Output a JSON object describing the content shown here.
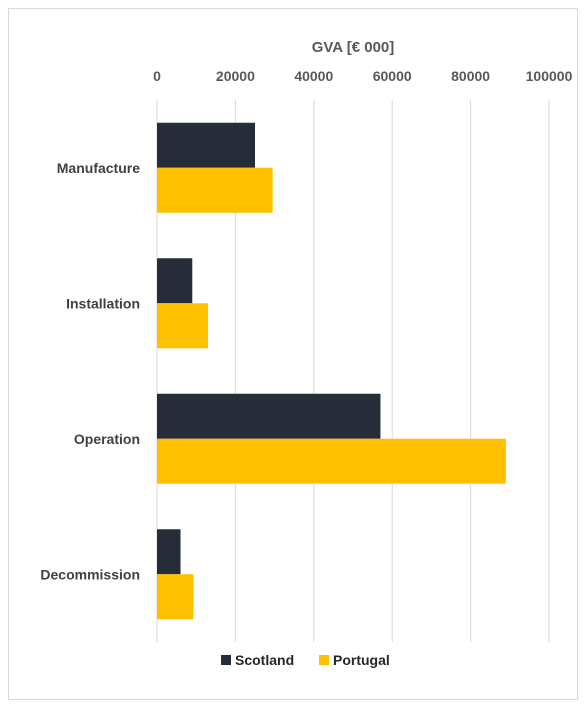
{
  "chart_data": {
    "type": "bar",
    "orientation": "horizontal",
    "title": "",
    "xlabel": "GVA [€ 000]",
    "ylabel": "",
    "categories": [
      "Manufacture",
      "Installation",
      "Operation",
      "Decommission"
    ],
    "series": [
      {
        "name": "Scotland",
        "color": "#262c38",
        "values": [
          25000,
          9000,
          57000,
          6000
        ]
      },
      {
        "name": "Portugal",
        "color": "#ffc000",
        "values": [
          29500,
          13000,
          89000,
          9300
        ]
      }
    ],
    "xlim": [
      0,
      100000
    ],
    "x_ticks": [
      "0",
      "20000",
      "40000",
      "60000",
      "80000",
      "100000"
    ],
    "x_axis_position": "top",
    "grid": true,
    "legend": "bottom"
  }
}
